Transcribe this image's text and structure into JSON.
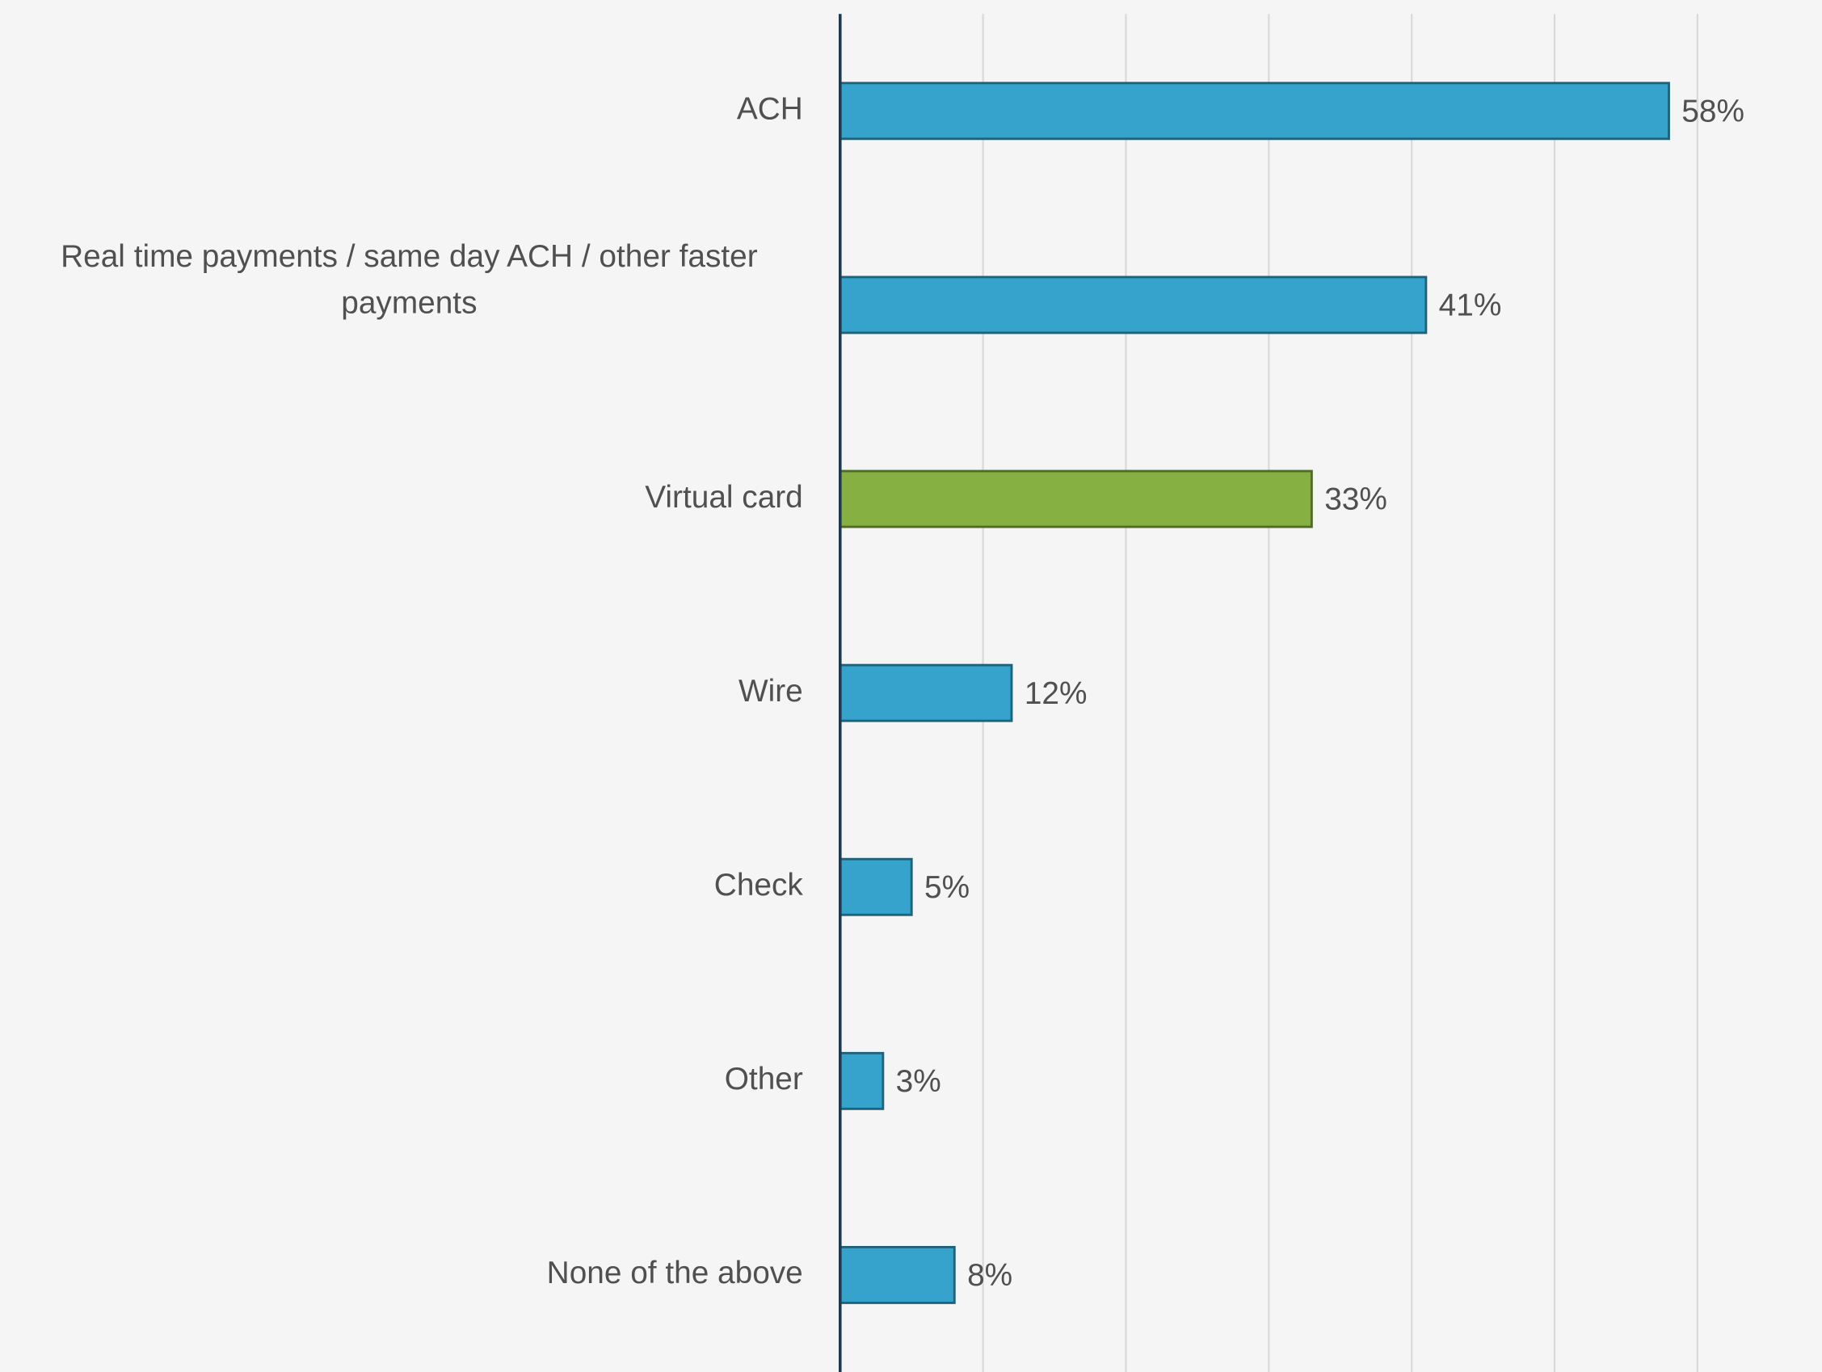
{
  "chart_data": {
    "type": "bar",
    "orientation": "horizontal",
    "categories": [
      "ACH",
      "Real time payments / same day ACH / other faster payments",
      "Virtual card",
      "Wire",
      "Check",
      "Other",
      "None of the above"
    ],
    "values": [
      58,
      41,
      33,
      12,
      5,
      3,
      8
    ],
    "value_labels": [
      "58%",
      "41%",
      "33%",
      "12%",
      "5%",
      "3%",
      "8%"
    ],
    "colors": [
      "#35a3cb",
      "#35a3cb",
      "#86b142",
      "#35a3cb",
      "#35a3cb",
      "#35a3cb",
      "#35a3cb"
    ],
    "xlim": [
      0,
      60
    ],
    "xticks": [
      0,
      10,
      20,
      30,
      40,
      50,
      60
    ],
    "grid": true
  }
}
